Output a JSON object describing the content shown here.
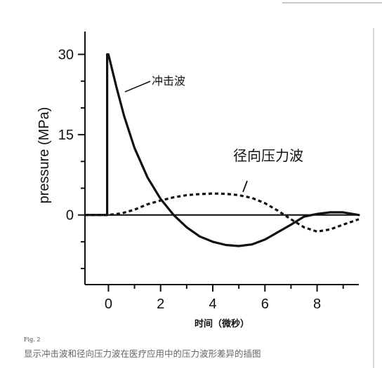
{
  "chart_data": {
    "type": "line",
    "ylabel": "pressure (MPa)",
    "xlabel": "时间（微秒）",
    "xlim": [
      -0.9,
      9.6
    ],
    "ylim": [
      -13,
      34
    ],
    "x_ticks": [
      0,
      2,
      4,
      6,
      8
    ],
    "y_ticks": [
      0,
      15,
      30
    ],
    "series": [
      {
        "name": "冲击波",
        "style": "solid",
        "color": "#111111",
        "x": [
          -0.9,
          -0.05,
          -0.05,
          0.0,
          0.3,
          0.6,
          1.0,
          1.5,
          2.0,
          2.5,
          3.0,
          3.5,
          4.0,
          4.5,
          5.0,
          5.5,
          6.0,
          6.5,
          7.0,
          7.5,
          8.0,
          8.5,
          9.0,
          9.6
        ],
        "y": [
          0,
          0,
          30,
          30,
          24,
          18.5,
          12.5,
          7,
          3,
          0,
          -2.3,
          -4,
          -5,
          -5.6,
          -5.8,
          -5.5,
          -4.6,
          -3.2,
          -1.8,
          -0.3,
          0.2,
          0.5,
          0.5,
          0
        ]
      },
      {
        "name": "径向压力波",
        "style": "dashed",
        "color": "#111111",
        "x": [
          -0.9,
          0.0,
          0.5,
          1.0,
          1.5,
          2.0,
          2.5,
          3.0,
          3.5,
          4.0,
          4.5,
          5.0,
          5.5,
          6.0,
          6.5,
          7.0,
          7.5,
          8.0,
          8.5,
          9.0,
          9.6
        ],
        "y": [
          0,
          0,
          0.3,
          1,
          2,
          2.7,
          3.3,
          3.7,
          3.9,
          4.0,
          3.95,
          3.7,
          3.2,
          2.2,
          0.8,
          -0.8,
          -2.3,
          -3.1,
          -2.7,
          -1.8,
          -0.8
        ]
      }
    ],
    "annotations": [
      {
        "text": "冲击波",
        "series": 0
      },
      {
        "text": "径向压力波",
        "series": 1
      }
    ]
  },
  "figure": {
    "fig_label": "Fig. 2",
    "caption": "显示冲击波和径向压力波在医疗应用中的压力波形差异的插图"
  }
}
